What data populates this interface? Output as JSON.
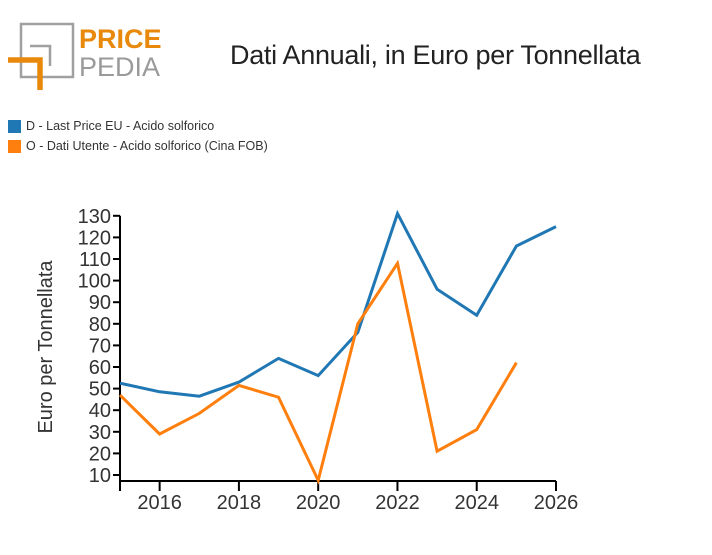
{
  "logo": {
    "line1": "PRICE",
    "line2": "PEDIA",
    "accent": "#E8890C",
    "grey": "#9a9a9a"
  },
  "header": {
    "title": "Dati Annuali, in Euro per Tonnellata"
  },
  "legend": [
    {
      "label": "D - Last Price EU - Acido solforico",
      "color": "#1F77B4"
    },
    {
      "label": "O - Dati Utente - Acido solforico (Cina FOB)",
      "color": "#FF7F0E"
    }
  ],
  "chart_data": {
    "type": "line",
    "title": "Dati Annuali, in Euro per Tonnellata",
    "xlabel": "",
    "ylabel": "Euro per Tonnellata",
    "xlim": [
      2015,
      2026
    ],
    "ylim": [
      7,
      132
    ],
    "xticks": [
      2016,
      2018,
      2020,
      2022,
      2024,
      2026
    ],
    "yticks": [
      10,
      20,
      30,
      40,
      50,
      60,
      70,
      80,
      90,
      100,
      110,
      120,
      130
    ],
    "grid": false,
    "legend_position": "top-left",
    "series": [
      {
        "name": "D - Last Price EU - Acido solforico",
        "color": "#1F77B4",
        "x": [
          2015,
          2016,
          2017,
          2018,
          2019,
          2020,
          2021,
          2022,
          2023,
          2024,
          2025,
          2026
        ],
        "values": [
          52.5,
          48.5,
          46.5,
          53,
          64,
          56,
          76,
          131,
          96,
          84,
          116,
          125
        ]
      },
      {
        "name": "O - Dati Utente - Acido solforico (Cina FOB)",
        "color": "#FF7F0E",
        "x": [
          2015,
          2016,
          2017,
          2018,
          2019,
          2020,
          2021,
          2022,
          2023,
          2024,
          2025
        ],
        "values": [
          47,
          29,
          38.5,
          51.5,
          46,
          7.5,
          80,
          108,
          21,
          31,
          62
        ]
      }
    ]
  }
}
